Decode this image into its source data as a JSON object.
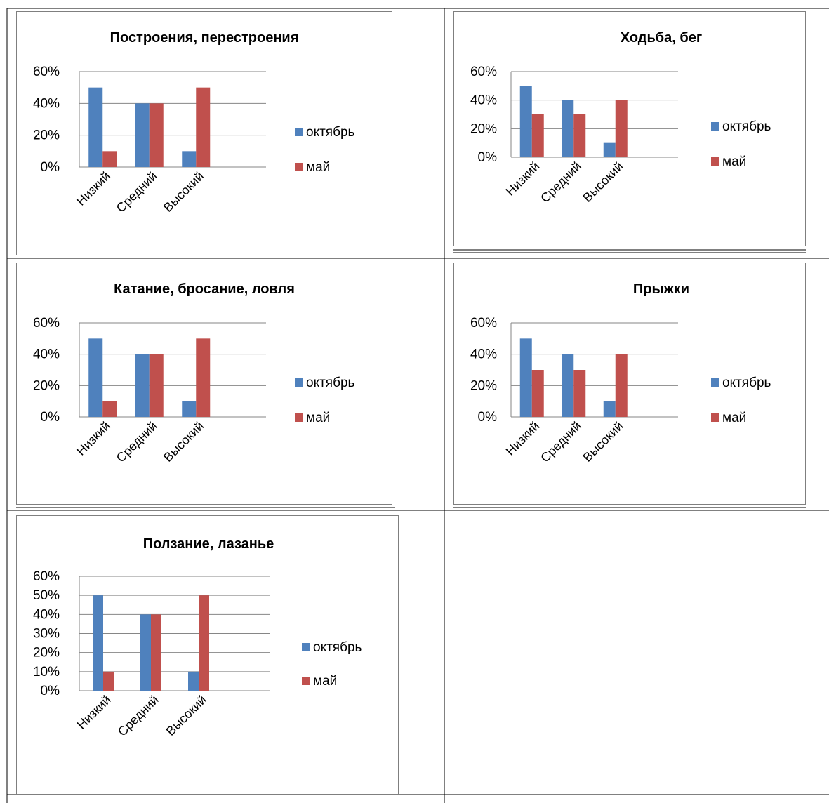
{
  "colors": {
    "october": "#4F81BD",
    "may": "#C0504D",
    "gridline": "#868686",
    "frame": "#7F7F7F",
    "table_line": "#000000",
    "text": "#000000"
  },
  "chart_data": [
    {
      "type": "bar",
      "title": "Построения, перестроения",
      "categories": [
        "Низкий",
        "Средний",
        "Высокий"
      ],
      "series": [
        {
          "name": "октябрь",
          "values": [
            50,
            40,
            10
          ]
        },
        {
          "name": "май",
          "values": [
            10,
            40,
            50
          ]
        }
      ],
      "yticks": [
        "0%",
        "20%",
        "40%",
        "60%"
      ],
      "ylim": [
        0,
        60
      ],
      "grid": true,
      "legend": "right"
    },
    {
      "type": "bar",
      "title": "Ходьба, бег",
      "categories": [
        "Низкий",
        "Средний",
        "Высокий"
      ],
      "series": [
        {
          "name": "октябрь",
          "values": [
            50,
            40,
            10
          ]
        },
        {
          "name": "май",
          "values": [
            30,
            30,
            40
          ]
        }
      ],
      "yticks": [
        "0%",
        "20%",
        "40%",
        "60%"
      ],
      "ylim": [
        0,
        60
      ],
      "grid": true,
      "legend": "right"
    },
    {
      "type": "bar",
      "title": "Катание, бросание, ловля",
      "categories": [
        "Низкий",
        "Средний",
        "Высокий"
      ],
      "series": [
        {
          "name": "октябрь",
          "values": [
            50,
            40,
            10
          ]
        },
        {
          "name": "май",
          "values": [
            10,
            40,
            50
          ]
        }
      ],
      "yticks": [
        "0%",
        "20%",
        "40%",
        "60%"
      ],
      "ylim": [
        0,
        60
      ],
      "grid": true,
      "legend": "right"
    },
    {
      "type": "bar",
      "title": "Прыжки",
      "categories": [
        "Низкий",
        "Средний",
        "Высокий"
      ],
      "series": [
        {
          "name": "октябрь",
          "values": [
            50,
            40,
            10
          ]
        },
        {
          "name": "май",
          "values": [
            30,
            30,
            40
          ]
        }
      ],
      "yticks": [
        "0%",
        "20%",
        "40%",
        "60%"
      ],
      "ylim": [
        0,
        60
      ],
      "grid": true,
      "legend": "right"
    },
    {
      "type": "bar",
      "title": "Ползание, лазанье",
      "categories": [
        "Низкий",
        "Средний",
        "Высокий"
      ],
      "series": [
        {
          "name": "октябрь",
          "values": [
            50,
            40,
            10
          ]
        },
        {
          "name": "май",
          "values": [
            10,
            40,
            50
          ]
        }
      ],
      "yticks": [
        "0%",
        "10%",
        "20%",
        "30%",
        "40%",
        "50%",
        "60%"
      ],
      "ylim": [
        0,
        60
      ],
      "grid": true,
      "legend": "right"
    }
  ]
}
